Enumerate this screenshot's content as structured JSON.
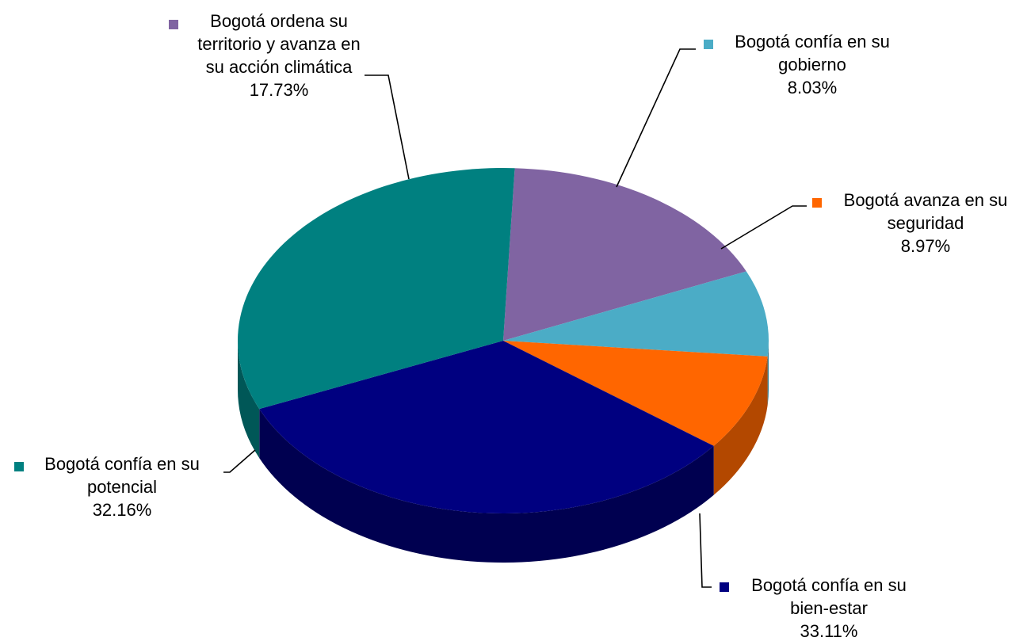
{
  "chart_data": {
    "type": "pie",
    "style": "3d",
    "legend_placement": "labels next to slices with leader lines",
    "slices": [
      {
        "label_lines": [
          "Bogotá ordena su",
          "territorio y avanza en",
          "su acción climática"
        ],
        "value": 17.73,
        "value_label": "17.73%",
        "color": "#8064A2",
        "side_color": "#5E4A7A"
      },
      {
        "label_lines": [
          "Bogotá confía en su",
          "gobierno"
        ],
        "value": 8.03,
        "value_label": "8.03%",
        "color": "#4BACC6",
        "side_color": "#347E92"
      },
      {
        "label_lines": [
          "Bogotá avanza en su",
          "seguridad"
        ],
        "value": 8.97,
        "value_label": "8.97%",
        "color": "#FF6600",
        "side_color": "#B34800"
      },
      {
        "label_lines": [
          "Bogotá confía en su",
          "bien-estar"
        ],
        "value": 33.11,
        "value_label": "33.11%",
        "color": "#000080",
        "side_color": "#000050"
      },
      {
        "label_lines": [
          "Bogotá confía en su",
          "potencial"
        ],
        "value": 32.16,
        "value_label": "32.16%",
        "color": "#008080",
        "side_color": "#005757"
      }
    ]
  }
}
